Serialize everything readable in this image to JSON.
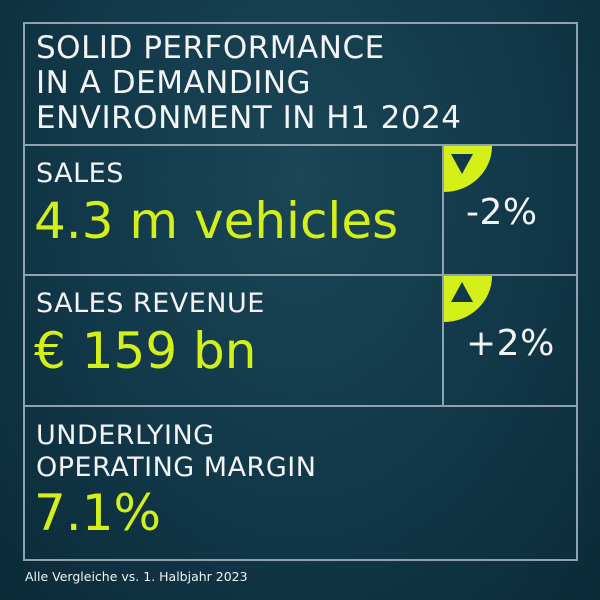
{
  "headline": [
    "SOLID PERFORMANCE",
    "IN A DEMANDING",
    "ENVIRONMENT IN H1 2024"
  ],
  "sales": {
    "label": "SALES",
    "value": "4.3 m vehicles",
    "change": "-2%",
    "trend": "down"
  },
  "revenue": {
    "label": "SALES REVENUE",
    "value": "€ 159 bn",
    "change": "+2%",
    "trend": "up"
  },
  "margin": {
    "label": [
      "UNDERLYING",
      "OPERATING MARGIN"
    ],
    "value": "7.1%"
  },
  "footnote": "Alle Vergleiche vs. 1. Halbjahr 2023",
  "colors": {
    "accent": "#d4f019",
    "background": "#12394a",
    "text": "#f2f4f5"
  }
}
